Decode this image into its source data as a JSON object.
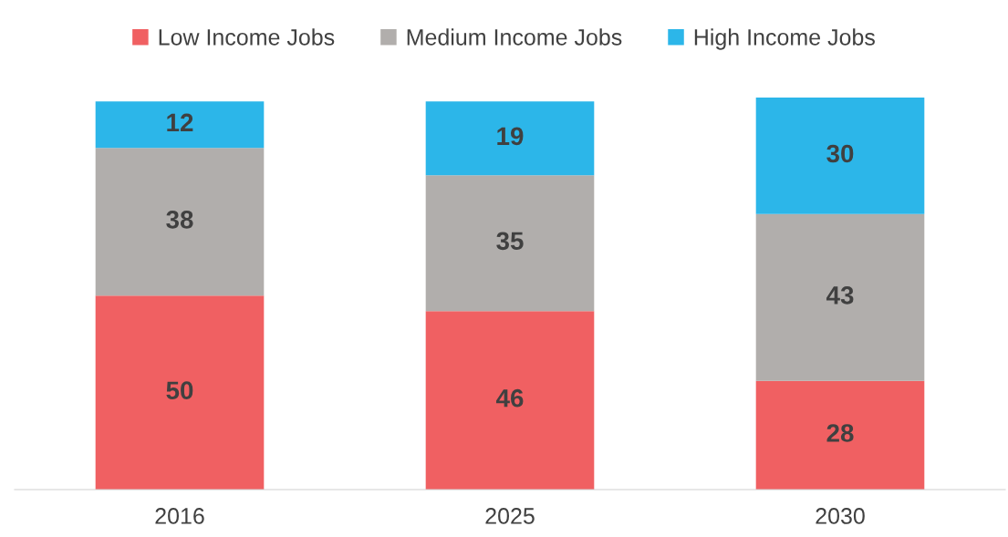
{
  "chart_data": {
    "type": "bar",
    "stacked": true,
    "data_labels": true,
    "legend": "top",
    "grid": false,
    "categories": [
      "2016",
      "2025",
      "2030"
    ],
    "series": [
      {
        "name": "Low Income Jobs",
        "color": "#f06062",
        "values": [
          50,
          46,
          28
        ]
      },
      {
        "name": "Medium Income Jobs",
        "color": "#b1aeac",
        "values": [
          38,
          35,
          43
        ]
      },
      {
        "name": "High Income Jobs",
        "color": "#2cb6e9",
        "values": [
          12,
          19,
          30
        ]
      }
    ]
  }
}
